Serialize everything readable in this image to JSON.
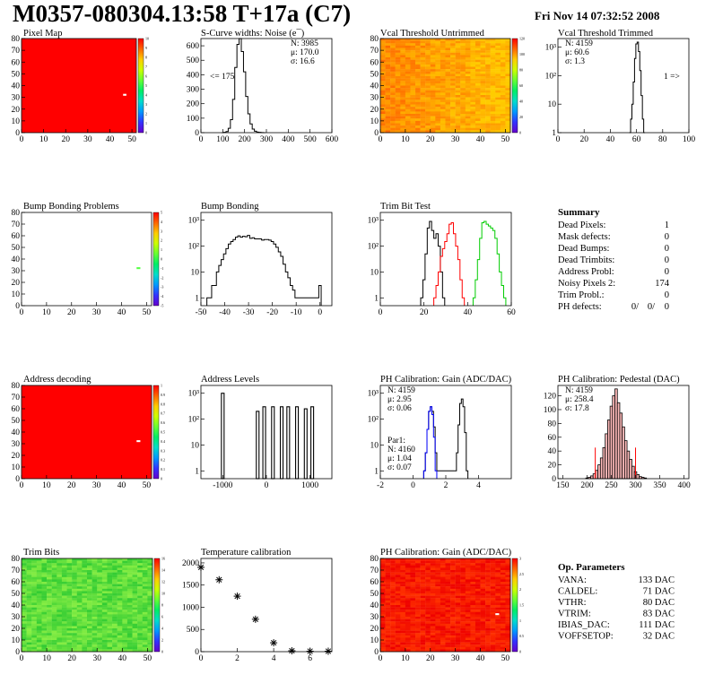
{
  "header": {
    "title": "M0357-080304.13:58 T+17a (C7)",
    "date": "Fri Nov 14 07:32:52 2008"
  },
  "colors": {
    "red": "#ff0000",
    "green": "#00cc00",
    "blue": "#0000ff",
    "black": "#000000",
    "lightgreen": "#55ff44",
    "pink": "#ffbbbb"
  },
  "chart_data": [
    {
      "id": "pixel-map",
      "type": "heatmap",
      "title": "Pixel Map",
      "xlim": [
        0,
        52
      ],
      "ylim": [
        0,
        80
      ],
      "xticks": [
        "0",
        "10",
        "20",
        "30",
        "40",
        "50"
      ],
      "yticks": [
        "0",
        "10",
        "20",
        "30",
        "40",
        "50",
        "60",
        "70",
        "80"
      ],
      "base_color": "red",
      "special_cells": [
        {
          "x": 46,
          "y": 32,
          "color": "white"
        }
      ],
      "colorbar": {
        "min": 0,
        "max": 10,
        "labels": [
          "10",
          "9",
          "8",
          "7",
          "6",
          "5",
          "4",
          "3",
          "2",
          "1",
          "0"
        ]
      }
    },
    {
      "id": "scurve-noise",
      "type": "line",
      "title": "S-Curve widths: Noise (e¯)",
      "xlim": [
        0,
        600
      ],
      "ylim": [
        0,
        650
      ],
      "xticks": [
        "0",
        "100",
        "200",
        "300",
        "400",
        "500",
        "600"
      ],
      "yticks": [
        "0",
        "100",
        "200",
        "300",
        "400",
        "500",
        "600"
      ],
      "x": [
        100,
        110,
        120,
        130,
        140,
        150,
        160,
        170,
        180,
        190,
        200,
        210,
        220,
        230,
        240,
        250,
        260,
        270,
        280,
        290
      ],
      "y": [
        0,
        2,
        8,
        30,
        90,
        230,
        450,
        610,
        650,
        560,
        420,
        250,
        130,
        60,
        25,
        10,
        4,
        2,
        1,
        0
      ],
      "stats": {
        "N": "N: 3985",
        "mu": "μ: 170.0",
        "sigma": "σ: 16.6"
      },
      "annotations": [
        "<= 175"
      ]
    },
    {
      "id": "vcal-untrimmed",
      "type": "heatmap",
      "title": "Vcal Threshold Untrimmed",
      "xlim": [
        0,
        52
      ],
      "ylim": [
        0,
        80
      ],
      "xticks": [
        "0",
        "10",
        "20",
        "30",
        "40",
        "50"
      ],
      "yticks": [
        "0",
        "10",
        "20",
        "30",
        "40",
        "50",
        "60",
        "70",
        "80"
      ],
      "gradient": [
        "#ff6600",
        "#ffcc00"
      ],
      "colorbar": {
        "min": 0,
        "max": 120,
        "labels": [
          "120",
          "100",
          "80",
          "60",
          "40",
          "20",
          "0"
        ]
      }
    },
    {
      "id": "vcal-trimmed",
      "type": "line",
      "title": "Vcal Threshold Trimmed",
      "xlim": [
        0,
        100
      ],
      "log_y": true,
      "ylim": [
        1,
        2000
      ],
      "xticks": [
        "0",
        "20",
        "40",
        "60",
        "80",
        "100"
      ],
      "yticks": [
        "1",
        "10",
        "10²",
        "10³"
      ],
      "x": [
        55,
        56,
        57,
        58,
        59,
        60,
        61,
        62,
        63,
        64,
        65,
        66
      ],
      "y": [
        1,
        3,
        10,
        60,
        400,
        1300,
        1500,
        700,
        150,
        20,
        3,
        1
      ],
      "stats": {
        "N": "N: 4159",
        "mu": "μ: 60.6",
        "sigma": "σ: 1.3"
      },
      "annotations": [
        "1 =>"
      ]
    },
    {
      "id": "bump-bonding-problems",
      "type": "heatmap",
      "title": "Bump Bonding Problems",
      "xlim": [
        0,
        52
      ],
      "ylim": [
        0,
        80
      ],
      "xticks": [
        "0",
        "10",
        "20",
        "30",
        "40",
        "50"
      ],
      "yticks": [
        "0",
        "10",
        "20",
        "30",
        "40",
        "50",
        "60",
        "70",
        "80"
      ],
      "base_color": "white",
      "special_cells": [
        {
          "x": 46,
          "y": 32,
          "color": "lightgreen"
        }
      ],
      "colorbar": {
        "min": -5,
        "max": 5,
        "labels": [
          "5",
          "4",
          "3",
          "2",
          "1",
          "0",
          "-1",
          "-2",
          "-3",
          "-4",
          "-5"
        ]
      }
    },
    {
      "id": "bump-bonding",
      "type": "line",
      "title": "Bump Bonding",
      "xlim": [
        -50,
        5
      ],
      "log_y": true,
      "ylim": [
        0.5,
        2000
      ],
      "xticks": [
        "-50",
        "-40",
        "-30",
        "-20",
        "-10",
        "0"
      ],
      "yticks": [
        "1",
        "10",
        "10²",
        "10³"
      ],
      "x": [
        -47,
        -46,
        -45,
        -44,
        -43,
        -42,
        -41,
        -40,
        -39,
        -38,
        -37,
        -36,
        -35,
        -34,
        -33,
        -32,
        -31,
        -30,
        -29,
        -28,
        -27,
        -26,
        -25,
        -24,
        -23,
        -22,
        -21,
        -20,
        -19,
        -18,
        -17,
        -16,
        -15,
        -14,
        -13,
        -12,
        -11,
        -10,
        -9,
        -8,
        -1,
        0
      ],
      "y": [
        1,
        1,
        3,
        3,
        10,
        18,
        30,
        50,
        80,
        120,
        150,
        180,
        220,
        250,
        220,
        240,
        230,
        260,
        200,
        210,
        190,
        190,
        190,
        170,
        180,
        180,
        170,
        150,
        120,
        90,
        60,
        40,
        20,
        10,
        6,
        3,
        2,
        1,
        1,
        1,
        1,
        3
      ]
    },
    {
      "id": "trim-bit-test",
      "type": "line",
      "title": "Trim Bit Test",
      "xlim": [
        0,
        60
      ],
      "log_y": true,
      "ylim": [
        0.5,
        2000
      ],
      "xticks": [
        "0",
        "20",
        "40",
        "60"
      ],
      "yticks": [
        "1",
        "10",
        "10²",
        "10³"
      ],
      "series": [
        {
          "color": "black",
          "x": [
            19,
            20,
            21,
            22,
            23,
            24,
            25,
            26,
            27,
            28,
            29
          ],
          "y": [
            1,
            5,
            50,
            500,
            900,
            400,
            200,
            300,
            100,
            10,
            1
          ]
        },
        {
          "color": "red",
          "x": [
            25,
            26,
            27,
            28,
            29,
            30,
            31,
            32,
            33,
            34,
            35,
            36,
            37,
            38
          ],
          "y": [
            1,
            3,
            10,
            40,
            80,
            150,
            300,
            700,
            800,
            300,
            100,
            30,
            5,
            1
          ]
        },
        {
          "color": "green",
          "x": [
            43,
            44,
            45,
            46,
            47,
            48,
            49,
            50,
            51,
            52,
            53,
            54,
            55,
            56,
            57
          ],
          "y": [
            1,
            5,
            30,
            200,
            800,
            900,
            700,
            600,
            500,
            400,
            200,
            50,
            10,
            3,
            1
          ]
        }
      ]
    },
    {
      "id": "address-decoding",
      "type": "heatmap",
      "title": "Address decoding",
      "xlim": [
        0,
        52
      ],
      "ylim": [
        0,
        80
      ],
      "xticks": [
        "0",
        "10",
        "20",
        "30",
        "40",
        "50"
      ],
      "yticks": [
        "0",
        "10",
        "20",
        "30",
        "40",
        "50",
        "60",
        "70",
        "80"
      ],
      "base_color": "red",
      "special_cells": [
        {
          "x": 46,
          "y": 32,
          "color": "white"
        }
      ],
      "colorbar": {
        "min": 0,
        "max": 1,
        "labels": [
          "1",
          "0.9",
          "0.8",
          "0.7",
          "0.6",
          "0.5",
          "0.4",
          "0.3",
          "0.2",
          "0.1",
          "0"
        ]
      }
    },
    {
      "id": "address-levels",
      "type": "bar",
      "title": "Address Levels",
      "xlim": [
        -1500,
        1500
      ],
      "log_y": true,
      "ylim": [
        0.5,
        2000
      ],
      "xticks": [
        "-1000",
        "0",
        "1000"
      ],
      "yticks": [
        "1",
        "10",
        "10²",
        "10³"
      ],
      "x": [
        -1000,
        -200,
        -50,
        150,
        350,
        500,
        700,
        900,
        1050
      ],
      "y": [
        1000,
        200,
        300,
        300,
        300,
        300,
        300,
        250,
        300
      ]
    },
    {
      "id": "ph-gain",
      "type": "line",
      "title": "PH Calibration: Gain (ADC/DAC)",
      "xlim": [
        -2,
        6
      ],
      "log_y": true,
      "ylim": [
        0.5,
        2000
      ],
      "xticks": [
        "-2",
        "0",
        "2",
        "4"
      ],
      "yticks": [
        "1",
        "10",
        "10²",
        "10³"
      ],
      "series": [
        {
          "color": "black",
          "x": [
            0.7,
            0.8,
            0.9,
            1.0,
            1.1,
            1.2,
            1.3,
            1.4,
            1.5,
            2.6,
            2.7,
            2.8,
            2.9,
            3.0,
            3.1,
            3.2,
            3.3
          ],
          "y": [
            1,
            5,
            40,
            200,
            300,
            200,
            50,
            5,
            1,
            1,
            5,
            60,
            400,
            600,
            300,
            30,
            1
          ]
        },
        {
          "color": "blue",
          "x": [
            0.7,
            0.8,
            0.9,
            1.0,
            1.1,
            1.2,
            1.3,
            1.4
          ],
          "y": [
            1,
            5,
            40,
            200,
            300,
            150,
            20,
            1
          ]
        }
      ],
      "stats": {
        "N": "N: 4159",
        "mu": "μ: 2.95",
        "sigma": "σ: 0.06"
      },
      "stats2": {
        "label": "Par1:",
        "N": "N: 4160",
        "mu": "μ: 1.04",
        "sigma": "σ: 0.07"
      }
    },
    {
      "id": "ph-pedestal",
      "type": "bar",
      "title": "PH Calibration: Pedestal (DAC)",
      "xlim": [
        140,
        410
      ],
      "ylim": [
        0,
        135
      ],
      "xticks": [
        "150",
        "200",
        "250",
        "300",
        "350",
        "400"
      ],
      "yticks": [
        "0",
        "20",
        "40",
        "60",
        "80",
        "100",
        "120"
      ],
      "x": [
        200,
        205,
        210,
        215,
        220,
        225,
        230,
        235,
        240,
        245,
        250,
        255,
        260,
        265,
        270,
        275,
        280,
        285,
        290,
        295,
        300,
        305,
        310,
        315,
        320
      ],
      "y": [
        1,
        2,
        4,
        7,
        12,
        20,
        30,
        45,
        65,
        85,
        105,
        120,
        130,
        110,
        95,
        75,
        55,
        40,
        28,
        18,
        10,
        6,
        3,
        2,
        1
      ],
      "fit_lines_x": [
        217,
        300
      ],
      "stats": {
        "N": "N: 4159",
        "mu": "μ: 258.4",
        "sigma": "σ: 17.8"
      }
    },
    {
      "id": "trim-bits",
      "type": "heatmap",
      "title": "Trim Bits",
      "xlim": [
        0,
        52
      ],
      "ylim": [
        0,
        80
      ],
      "xticks": [
        "0",
        "10",
        "20",
        "30",
        "40",
        "50"
      ],
      "yticks": [
        "0",
        "10",
        "20",
        "30",
        "40",
        "50",
        "60",
        "70",
        "80"
      ],
      "gradient": [
        "#33cc33",
        "#88ee44"
      ],
      "colorbar": {
        "min": 0,
        "max": 16,
        "labels": [
          "16",
          "14",
          "12",
          "10",
          "8",
          "6",
          "4",
          "2",
          "0"
        ]
      }
    },
    {
      "id": "temperature-calibration",
      "type": "scatter",
      "title": "Temperature calibration",
      "xlim": [
        0,
        7.2
      ],
      "ylim": [
        0,
        2100
      ],
      "xticks": [
        "0",
        "2",
        "4",
        "6"
      ],
      "yticks": [
        "0",
        "500",
        "1000",
        "1500",
        "2000"
      ],
      "x": [
        0,
        1,
        2,
        3,
        4,
        5,
        6,
        7
      ],
      "y": [
        1900,
        1620,
        1250,
        730,
        200,
        20,
        10,
        10
      ]
    },
    {
      "id": "ph-gain-map",
      "type": "heatmap",
      "title": "PH Calibration: Gain (ADC/DAC)",
      "xlim": [
        0,
        52
      ],
      "ylim": [
        0,
        80
      ],
      "xticks": [
        "0",
        "10",
        "20",
        "30",
        "40",
        "50"
      ],
      "yticks": [
        "0",
        "10",
        "20",
        "30",
        "40",
        "50",
        "60",
        "70",
        "80"
      ],
      "gradient": [
        "#ee0000",
        "#ff3300"
      ],
      "special_cells": [
        {
          "x": 46,
          "y": 32,
          "color": "white"
        }
      ],
      "colorbar": {
        "min": 0,
        "max": 3,
        "labels": [
          "3",
          "2.5",
          "2",
          "1.5",
          "1",
          "0.5",
          "0"
        ]
      }
    }
  ],
  "summary": {
    "title": "Summary",
    "rows": [
      {
        "label": "Dead Pixels:",
        "value": "1"
      },
      {
        "label": "Mask defects:",
        "value": "0"
      },
      {
        "label": "Dead Bumps:",
        "value": "0"
      },
      {
        "label": "Dead Trimbits:",
        "value": "0"
      },
      {
        "label": "Address Probl:",
        "value": "0"
      },
      {
        "label": "Noisy Pixels 2:",
        "value": "174"
      },
      {
        "label": "Trim Probl.:",
        "value": "0"
      }
    ],
    "ph_label": "PH defects:",
    "ph_values": [
      "0/",
      "0/",
      "0"
    ]
  },
  "op_parameters": {
    "title": "Op. Parameters",
    "rows": [
      {
        "label": "VANA:",
        "value": "133 DAC"
      },
      {
        "label": "CALDEL:",
        "value": "71 DAC"
      },
      {
        "label": "VTHR:",
        "value": "80 DAC"
      },
      {
        "label": "VTRIM:",
        "value": "83 DAC"
      },
      {
        "label": "IBIAS_DAC:",
        "value": "111 DAC"
      },
      {
        "label": "VOFFSETOP:",
        "value": "32 DAC"
      }
    ]
  }
}
